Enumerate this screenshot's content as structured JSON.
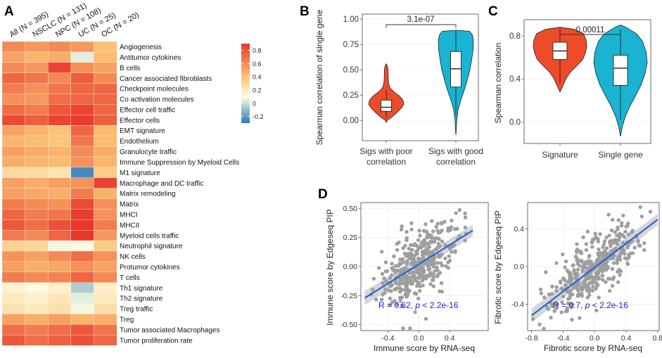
{
  "panel_labels": {
    "a": "A",
    "b": "B",
    "c": "C",
    "d": "D"
  },
  "colors": {
    "heat_low": "#2b7bba",
    "heat_mid": "#fffde1",
    "heat_high": "#e8382b",
    "violin_red": "#ee4b2b",
    "violin_cyan": "#1ab3d2",
    "point": "#9e9e9e",
    "fit_line": "#2a64d6",
    "band": "#c8c8c8",
    "annotation": "#1a1ad6"
  },
  "chart_data": [
    {
      "id": "A",
      "type": "heatmap",
      "columns": [
        "All (N = 395)",
        "NSCLC (N = 131)",
        "NPC (N = 108)",
        "UC (N = 25)",
        "OC (N = 20)"
      ],
      "rows": [
        "Angiogenesis",
        "Antitumor cytokines",
        "B cells",
        "Cancer associated fibroblasts",
        "Checkpoint molecules",
        "Co activation molecules",
        "Effector cell traffic",
        "Effector cells",
        "EMT signature",
        "Endothelium",
        "Granulocyte traffic",
        "Immune Suppression by Myeloid Cells",
        "M1 signature",
        "Macrophage and DC traffic",
        "Matrix remodeling",
        "Matrix",
        "MHCI",
        "MHCII",
        "Myeloid cells traffic",
        "Neutrophil signature",
        "NK cells",
        "Protumor cytokines",
        "T cells",
        "Th1 signature",
        "Th2 signature",
        "Treg traffic",
        "Treg",
        "Tumor associated Macrophages",
        "Tumor proliferation rate"
      ],
      "values": [
        [
          0.62,
          0.58,
          0.62,
          0.58,
          0.45
        ],
        [
          0.55,
          0.5,
          0.52,
          0.05,
          0.48
        ],
        [
          0.62,
          0.58,
          0.82,
          0.6,
          0.55
        ],
        [
          0.72,
          0.68,
          0.62,
          0.75,
          0.62
        ],
        [
          0.66,
          0.6,
          0.68,
          0.72,
          0.72
        ],
        [
          0.6,
          0.58,
          0.7,
          0.72,
          0.72
        ],
        [
          0.7,
          0.66,
          0.76,
          0.82,
          0.72
        ],
        [
          0.8,
          0.74,
          0.82,
          0.84,
          0.74
        ],
        [
          0.55,
          0.5,
          0.45,
          0.72,
          0.48
        ],
        [
          0.5,
          0.48,
          0.44,
          0.68,
          0.48
        ],
        [
          0.56,
          0.52,
          0.5,
          0.62,
          0.52
        ],
        [
          0.52,
          0.5,
          0.48,
          0.6,
          0.5
        ],
        [
          0.32,
          0.3,
          0.26,
          -0.25,
          0.4
        ],
        [
          0.56,
          0.52,
          0.56,
          0.6,
          0.82
        ],
        [
          0.56,
          0.54,
          0.52,
          0.66,
          0.5
        ],
        [
          0.66,
          0.62,
          0.6,
          0.8,
          0.6
        ],
        [
          0.72,
          0.66,
          0.68,
          0.84,
          0.6
        ],
        [
          0.76,
          0.7,
          0.78,
          0.88,
          0.66
        ],
        [
          0.66,
          0.62,
          0.72,
          0.88,
          0.58
        ],
        [
          0.36,
          0.34,
          0.08,
          0.12,
          0.4
        ],
        [
          0.6,
          0.56,
          0.62,
          0.7,
          0.6
        ],
        [
          0.56,
          0.52,
          0.54,
          0.6,
          0.55
        ],
        [
          0.66,
          0.62,
          0.64,
          0.72,
          0.62
        ],
        [
          0.16,
          0.12,
          0.18,
          -0.05,
          0.18
        ],
        [
          0.22,
          0.18,
          0.24,
          0.05,
          0.22
        ],
        [
          0.26,
          0.22,
          0.28,
          0.08,
          0.28
        ],
        [
          0.56,
          0.52,
          0.56,
          0.5,
          0.52
        ],
        [
          0.7,
          0.66,
          0.7,
          0.76,
          0.68
        ],
        [
          0.76,
          0.7,
          0.74,
          0.78,
          0.72
        ]
      ],
      "color_range": [
        -0.3,
        0.9
      ],
      "legend_ticks": [
        0.8,
        0.6,
        0.4,
        0.2,
        0,
        -0.2
      ],
      "legend_tick_labels": [
        "0.8",
        "0.6",
        "0.4",
        "0.2",
        "0",
        "-0.2"
      ]
    },
    {
      "id": "B",
      "type": "violin",
      "ylabel": "Spearman correlation of single gene",
      "ylim": [
        -0.2,
        1.05
      ],
      "yticks": [
        0.0,
        0.25,
        0.5,
        0.75,
        1.0
      ],
      "ytick_labels": [
        "0.00",
        "0.25",
        "0.50",
        "0.75",
        "1.00"
      ],
      "groups": [
        {
          "label_line1": "Sigs with poor",
          "label_line2": "correlation",
          "color": "red",
          "min": -0.02,
          "q1": 0.09,
          "median": 0.13,
          "q3": 0.2,
          "max": 0.56,
          "whisker_low": 0.02,
          "whisker_high": 0.3,
          "profile": [
            [
              -0.02,
              0.005
            ],
            [
              0.0,
              0.05
            ],
            [
              0.03,
              0.3
            ],
            [
              0.08,
              0.62
            ],
            [
              0.12,
              0.85
            ],
            [
              0.16,
              1.0
            ],
            [
              0.2,
              0.95
            ],
            [
              0.24,
              0.75
            ],
            [
              0.28,
              0.45
            ],
            [
              0.32,
              0.22
            ],
            [
              0.36,
              0.14
            ],
            [
              0.4,
              0.12
            ],
            [
              0.45,
              0.11
            ],
            [
              0.5,
              0.1
            ],
            [
              0.53,
              0.08
            ],
            [
              0.56,
              0.005
            ]
          ]
        },
        {
          "label_line1": "Sigs with good",
          "label_line2": "correlation",
          "color": "cyan",
          "min": -0.14,
          "q1": 0.33,
          "median": 0.51,
          "q3": 0.68,
          "max": 0.89,
          "whisker_low": 0.05,
          "whisker_high": 0.89,
          "profile": [
            [
              -0.14,
              0.005
            ],
            [
              0.0,
              0.05
            ],
            [
              0.1,
              0.12
            ],
            [
              0.2,
              0.28
            ],
            [
              0.3,
              0.48
            ],
            [
              0.4,
              0.65
            ],
            [
              0.5,
              0.8
            ],
            [
              0.6,
              0.9
            ],
            [
              0.7,
              0.98
            ],
            [
              0.78,
              1.0
            ],
            [
              0.84,
              0.95
            ],
            [
              0.88,
              0.78
            ],
            [
              0.89,
              0.005
            ]
          ]
        }
      ],
      "pvalue": "3.1e-07"
    },
    {
      "id": "C",
      "type": "violin",
      "ylabel": "Spearman correlation",
      "ylim": [
        -0.2,
        0.95
      ],
      "yticks": [
        0.0,
        0.4,
        0.8
      ],
      "ytick_labels": [
        "0.0",
        "0.4",
        "0.8"
      ],
      "groups": [
        {
          "label": "Signature",
          "color": "red",
          "q1": 0.58,
          "median": 0.66,
          "q3": 0.74,
          "whisker_low": 0.36,
          "whisker_high": 0.87,
          "profile": [
            [
              0.28,
              0.005
            ],
            [
              0.32,
              0.08
            ],
            [
              0.36,
              0.15
            ],
            [
              0.4,
              0.22
            ],
            [
              0.46,
              0.38
            ],
            [
              0.52,
              0.62
            ],
            [
              0.58,
              0.85
            ],
            [
              0.64,
              0.95
            ],
            [
              0.7,
              1.0
            ],
            [
              0.76,
              0.98
            ],
            [
              0.82,
              0.88
            ],
            [
              0.86,
              0.55
            ],
            [
              0.88,
              0.005
            ]
          ]
        },
        {
          "label": "Single gene",
          "color": "cyan",
          "q1": 0.34,
          "median": 0.5,
          "q3": 0.62,
          "whisker_low": 0.02,
          "whisker_high": 0.86,
          "profile": [
            [
              -0.13,
              0.005
            ],
            [
              -0.05,
              0.06
            ],
            [
              0.05,
              0.18
            ],
            [
              0.15,
              0.36
            ],
            [
              0.25,
              0.58
            ],
            [
              0.35,
              0.78
            ],
            [
              0.45,
              0.92
            ],
            [
              0.55,
              1.0
            ],
            [
              0.65,
              0.96
            ],
            [
              0.75,
              0.82
            ],
            [
              0.82,
              0.6
            ],
            [
              0.88,
              0.2
            ],
            [
              0.9,
              0.005
            ]
          ]
        }
      ],
      "pvalue": "0.00011"
    },
    {
      "id": "D1",
      "type": "scatter",
      "xlabel": "Immune score by RNA-seq",
      "ylabel": "Immune score by Edgeseq PIP",
      "xlim": [
        -0.75,
        0.9
      ],
      "ylim": [
        -0.55,
        0.55
      ],
      "xticks": [
        -0.4,
        0.0,
        0.4
      ],
      "xtick_labels": [
        "-0.4",
        "0.0",
        "0.4"
      ],
      "yticks": [
        -0.5,
        -0.25,
        0.0,
        0.25,
        0.5
      ],
      "ytick_labels": [
        "-0.50",
        "-0.25",
        "0.00",
        "0.25",
        "0.50"
      ],
      "fit": {
        "x0": -0.7,
        "y0": -0.27,
        "x1": 0.7,
        "y1": 0.31
      },
      "annotation_r": "R = 0.62, ",
      "annotation_p": "p",
      "annotation_rest": " < 2.2e-16",
      "n_points": 395,
      "slope": 0.41,
      "noise_sd": 0.14
    },
    {
      "id": "D2",
      "type": "scatter",
      "xlabel": "Fibrotic score by RNA-seq",
      "ylabel": "Fibrotic score by Edgeseq PIP",
      "xlim": [
        -0.85,
        0.82
      ],
      "ylim": [
        -0.68,
        0.68
      ],
      "xticks": [
        -0.8,
        -0.4,
        0.0,
        0.4,
        0.8
      ],
      "xtick_labels": [
        "-0.8",
        "-0.4",
        "0.0",
        "0.4",
        "0.8"
      ],
      "yticks": [
        -0.4,
        0.0,
        0.4
      ],
      "ytick_labels": [
        "-0.4",
        "0.0",
        "0.4"
      ],
      "fit": {
        "x0": -0.8,
        "y0": -0.52,
        "x1": 0.8,
        "y1": 0.5
      },
      "annotation_r": "R = 0.7, ",
      "annotation_p": "p",
      "annotation_rest": " < 2.2e-16",
      "n_points": 395,
      "slope": 0.64,
      "noise_sd": 0.17
    }
  ]
}
